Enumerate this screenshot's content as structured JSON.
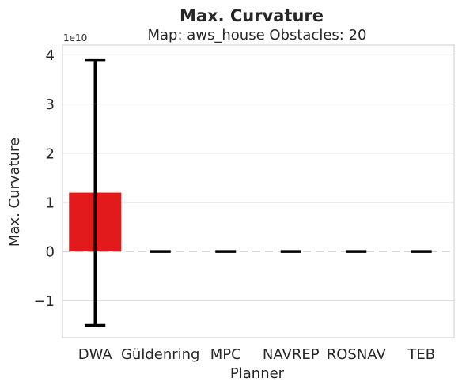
{
  "chart_data": {
    "type": "bar",
    "title": "Max. Curvature",
    "subtitle": "Map: aws_house Obstacles: 20",
    "xlabel": "Planner",
    "ylabel": "Max. Curvature",
    "y_offset_label": "1e10",
    "y_scale": 10000000000.0,
    "ylim": [
      -1.75,
      4.2
    ],
    "yticks": [
      -1,
      0,
      1,
      2,
      3,
      4
    ],
    "ytick_labels": [
      "−1",
      "0",
      "1",
      "2",
      "3",
      "4"
    ],
    "categories": [
      "DWA",
      "Güldenring",
      "MPC",
      "NAVREP",
      "ROSNAV",
      "TEB"
    ],
    "values": [
      1.2,
      0,
      0,
      0,
      0,
      0
    ],
    "error_low": [
      -1.5,
      0,
      0,
      0,
      0,
      0
    ],
    "error_high": [
      3.9,
      0,
      0,
      0,
      0,
      0
    ],
    "bar_color": "#e31a1c",
    "grid": true,
    "zero_line_dashed": true
  }
}
